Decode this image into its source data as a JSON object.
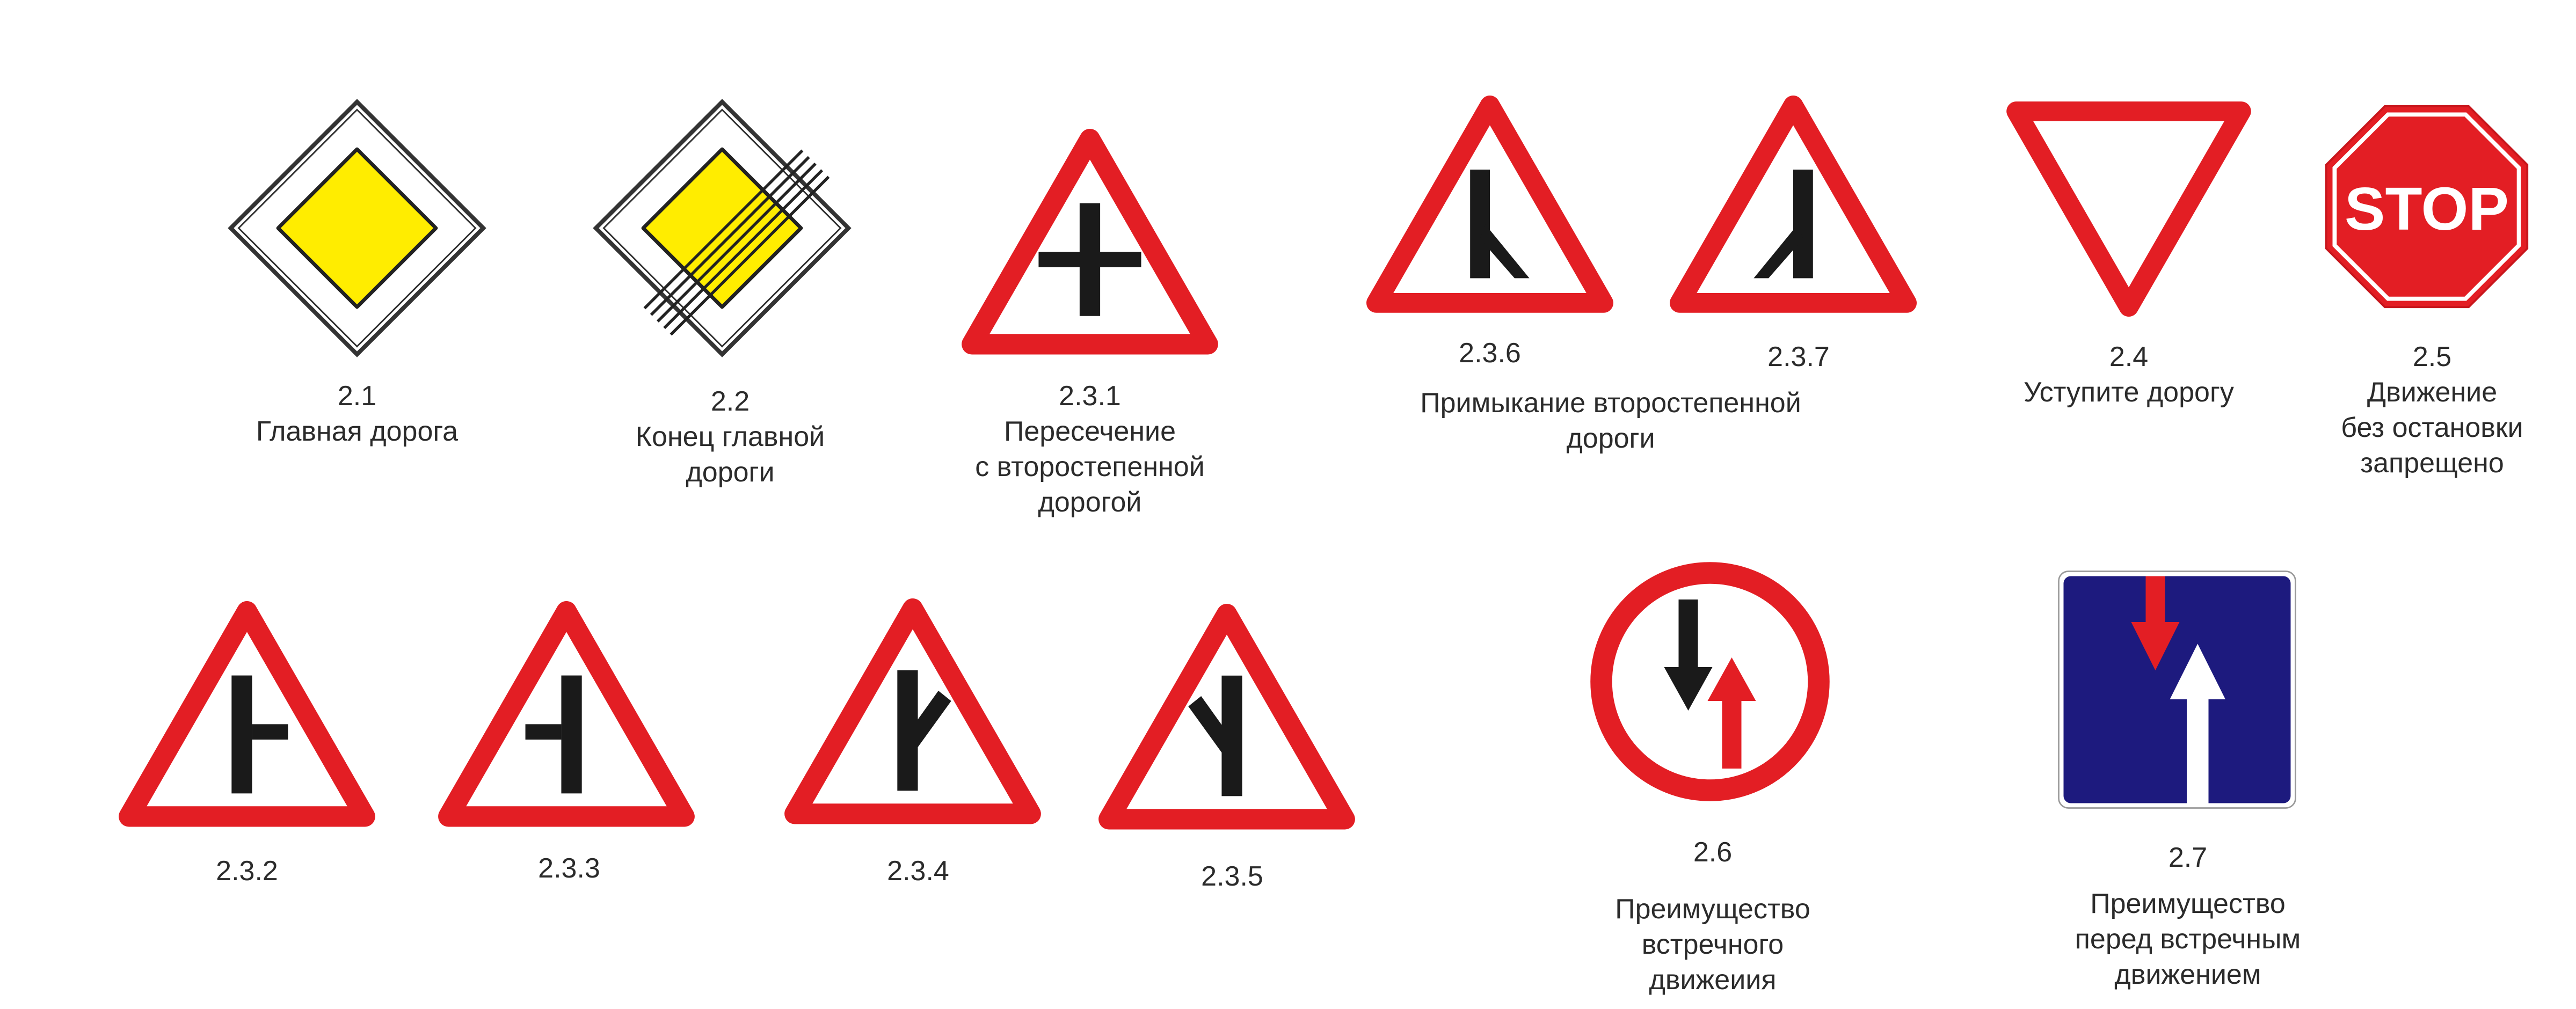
{
  "signs": {
    "s2_1": {
      "code": "2.1",
      "title": [
        "Главная дорога"
      ]
    },
    "s2_2": {
      "code": "2.2",
      "title": [
        "Конец главной",
        "дороги"
      ]
    },
    "s2_3_1": {
      "code": "2.3.1",
      "title": [
        "Пересечение",
        "с второстепенной",
        "дорогой"
      ]
    },
    "s2_3_6": {
      "code": "2.3.6"
    },
    "s2_3_7": {
      "code": "2.3.7"
    },
    "s2_3_6_7_title": [
      "Примыкание второстепенной",
      "дороги"
    ],
    "s2_4": {
      "code": "2.4",
      "title": [
        "Уступите дорогу"
      ]
    },
    "s2_5": {
      "code": "2.5",
      "title": [
        "Движение",
        "без остановки",
        "запрещено"
      ],
      "sign_text": "STOP"
    },
    "s2_3_2": {
      "code": "2.3.2"
    },
    "s2_3_3": {
      "code": "2.3.3"
    },
    "s2_3_4": {
      "code": "2.3.4"
    },
    "s2_3_5": {
      "code": "2.3.5"
    },
    "s2_6": {
      "code": "2.6",
      "title": [
        "Преимущество",
        "встречного",
        "движеиия"
      ]
    },
    "s2_7": {
      "code": "2.7",
      "title": [
        "Преимущество",
        "перед встречным",
        "движением"
      ]
    }
  },
  "colors": {
    "red": "#e31e24",
    "yellow": "#ffed00",
    "blue": "#1d1a7e",
    "black": "#1a1a1a",
    "white": "#ffffff"
  }
}
